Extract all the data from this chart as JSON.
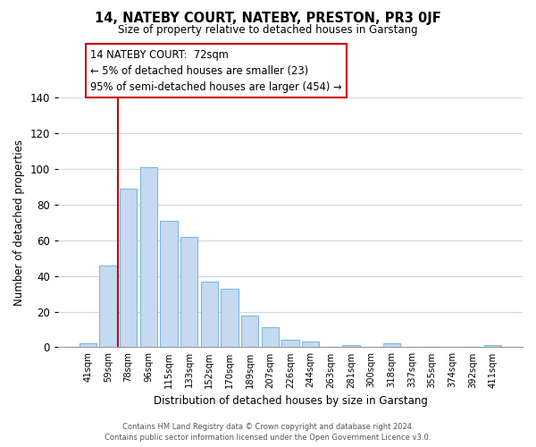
{
  "title": "14, NATEBY COURT, NATEBY, PRESTON, PR3 0JF",
  "subtitle": "Size of property relative to detached houses in Garstang",
  "xlabel": "Distribution of detached houses by size in Garstang",
  "ylabel": "Number of detached properties",
  "bar_labels": [
    "41sqm",
    "59sqm",
    "78sqm",
    "96sqm",
    "115sqm",
    "133sqm",
    "152sqm",
    "170sqm",
    "189sqm",
    "207sqm",
    "226sqm",
    "244sqm",
    "263sqm",
    "281sqm",
    "300sqm",
    "318sqm",
    "337sqm",
    "355sqm",
    "374sqm",
    "392sqm",
    "411sqm"
  ],
  "bar_values": [
    2,
    46,
    89,
    101,
    71,
    62,
    37,
    33,
    18,
    11,
    4,
    3,
    0,
    1,
    0,
    2,
    0,
    0,
    0,
    0,
    1
  ],
  "bar_color": "#c5d9f1",
  "bar_edge_color": "#7cb9e0",
  "highlight_line_color": "#cc0000",
  "ylim": [
    0,
    140
  ],
  "yticks": [
    0,
    20,
    40,
    60,
    80,
    100,
    120,
    140
  ],
  "annotation_title": "14 NATEBY COURT:  72sqm",
  "annotation_line1": "← 5% of detached houses are smaller (23)",
  "annotation_line2": "95% of semi-detached houses are larger (454) →",
  "annotation_box_color": "#ffffff",
  "annotation_box_edge": "#cc0000",
  "footer_line1": "Contains HM Land Registry data © Crown copyright and database right 2024.",
  "footer_line2": "Contains public sector information licensed under the Open Government Licence v3.0.",
  "background_color": "#ffffff",
  "grid_color": "#c8d8ec"
}
